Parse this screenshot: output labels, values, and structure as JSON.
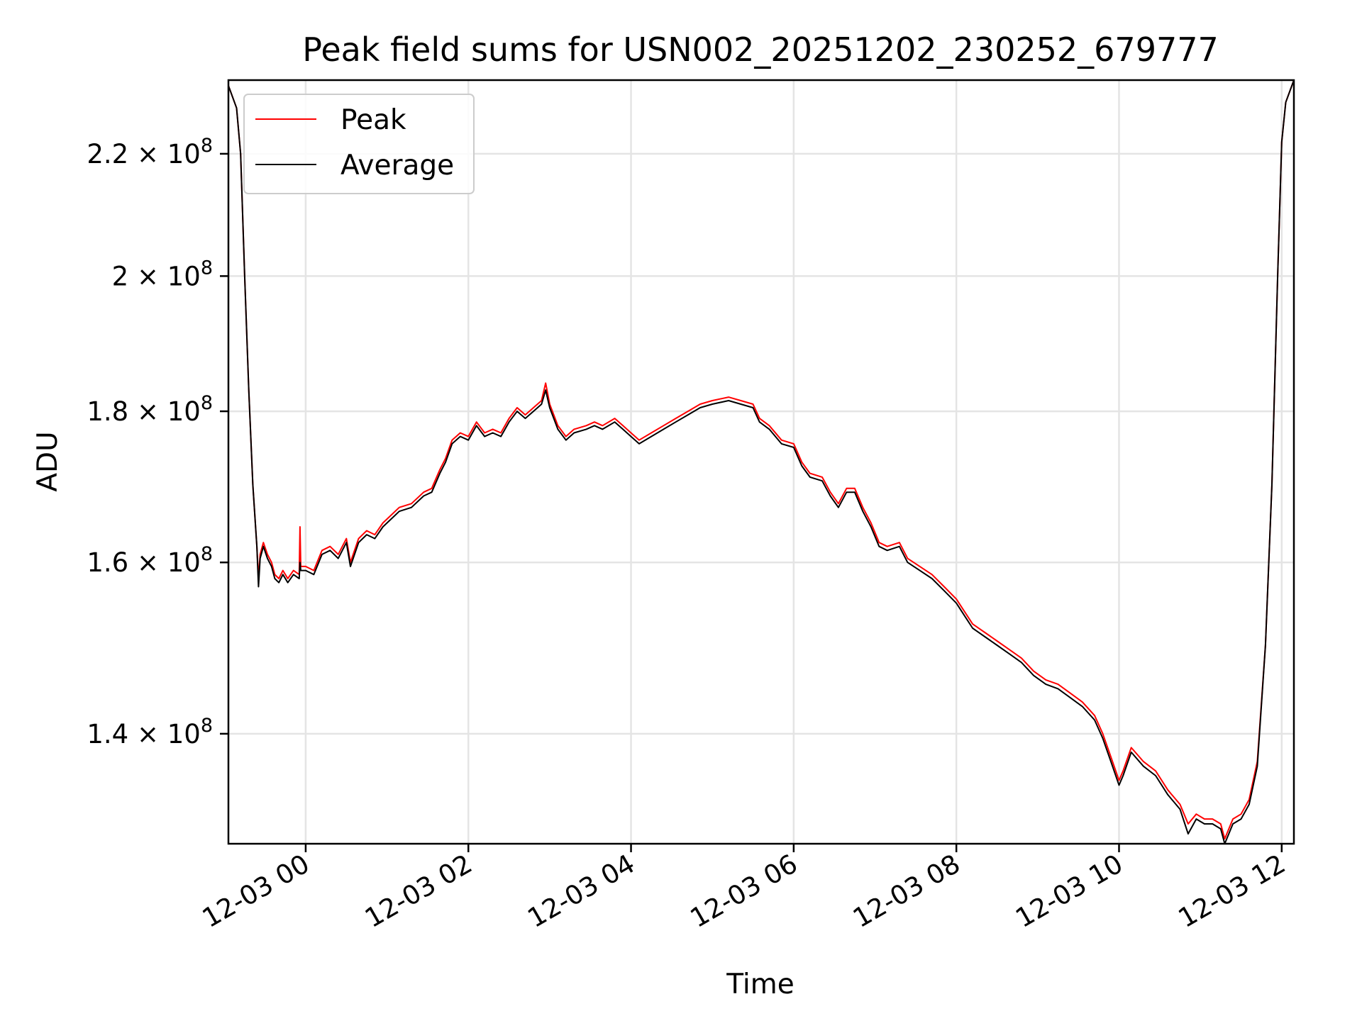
{
  "chart_data": {
    "type": "line",
    "title": "Peak field sums for USN002_20251202_230252_679777",
    "xlabel": "Time",
    "ylabel": "ADU",
    "yscale": "log",
    "ylim": [
      128500000,
      233000000
    ],
    "xlim_hours": [
      -0.95,
      12.15
    ],
    "grid": true,
    "legend": "upper-left",
    "x_ticks": [
      {
        "hour": 0,
        "label": "12-03 00"
      },
      {
        "hour": 2,
        "label": "12-03 02"
      },
      {
        "hour": 4,
        "label": "12-03 04"
      },
      {
        "hour": 6,
        "label": "12-03 06"
      },
      {
        "hour": 8,
        "label": "12-03 08"
      },
      {
        "hour": 10,
        "label": "12-03 10"
      },
      {
        "hour": 12,
        "label": "12-03 12"
      }
    ],
    "y_ticks": [
      {
        "value": 140000000,
        "mantissa": "1.4",
        "exp": "8"
      },
      {
        "value": 160000000,
        "mantissa": "1.6",
        "exp": "8"
      },
      {
        "value": 180000000,
        "mantissa": "1.8",
        "exp": "8"
      },
      {
        "value": 200000000,
        "mantissa": "2",
        "exp": "8"
      },
      {
        "value": 220000000,
        "mantissa": "2.2",
        "exp": "8"
      }
    ],
    "series": [
      {
        "name": "Peak",
        "color": "#ff0000",
        "points": [
          [
            -0.95,
            232000000
          ],
          [
            -0.85,
            228000000
          ],
          [
            -0.8,
            220000000
          ],
          [
            -0.75,
            200000000
          ],
          [
            -0.7,
            183000000
          ],
          [
            -0.65,
            170000000
          ],
          [
            -0.6,
            162000000
          ],
          [
            -0.58,
            158000000
          ],
          [
            -0.56,
            161000000
          ],
          [
            -0.52,
            162500000
          ],
          [
            -0.47,
            161000000
          ],
          [
            -0.42,
            160000000
          ],
          [
            -0.38,
            158500000
          ],
          [
            -0.33,
            158000000
          ],
          [
            -0.28,
            159000000
          ],
          [
            -0.22,
            158000000
          ],
          [
            -0.15,
            159000000
          ],
          [
            -0.08,
            158500000
          ],
          [
            -0.07,
            164500000
          ],
          [
            -0.06,
            159500000
          ],
          [
            0.0,
            159500000
          ],
          [
            0.1,
            159000000
          ],
          [
            0.2,
            161500000
          ],
          [
            0.3,
            162000000
          ],
          [
            0.4,
            161000000
          ],
          [
            0.5,
            163000000
          ],
          [
            0.55,
            160000000
          ],
          [
            0.65,
            163000000
          ],
          [
            0.75,
            164000000
          ],
          [
            0.85,
            163500000
          ],
          [
            0.95,
            165000000
          ],
          [
            1.05,
            166000000
          ],
          [
            1.15,
            167000000
          ],
          [
            1.3,
            167500000
          ],
          [
            1.45,
            169000000
          ],
          [
            1.55,
            169500000
          ],
          [
            1.65,
            172000000
          ],
          [
            1.72,
            173500000
          ],
          [
            1.8,
            176000000
          ],
          [
            1.9,
            177000000
          ],
          [
            2.0,
            176500000
          ],
          [
            2.1,
            178500000
          ],
          [
            2.2,
            177000000
          ],
          [
            2.3,
            177500000
          ],
          [
            2.4,
            177000000
          ],
          [
            2.5,
            179000000
          ],
          [
            2.6,
            180500000
          ],
          [
            2.7,
            179500000
          ],
          [
            2.8,
            180500000
          ],
          [
            2.9,
            181500000
          ],
          [
            2.95,
            184000000
          ],
          [
            3.0,
            181000000
          ],
          [
            3.1,
            178000000
          ],
          [
            3.2,
            176500000
          ],
          [
            3.3,
            177500000
          ],
          [
            3.45,
            178000000
          ],
          [
            3.55,
            178500000
          ],
          [
            3.65,
            178000000
          ],
          [
            3.8,
            179000000
          ],
          [
            3.9,
            178000000
          ],
          [
            4.0,
            177000000
          ],
          [
            4.1,
            176000000
          ],
          [
            4.25,
            177000000
          ],
          [
            4.4,
            178000000
          ],
          [
            4.55,
            179000000
          ],
          [
            4.7,
            180000000
          ],
          [
            4.85,
            181000000
          ],
          [
            5.0,
            181500000
          ],
          [
            5.2,
            182000000
          ],
          [
            5.35,
            181500000
          ],
          [
            5.5,
            181000000
          ],
          [
            5.58,
            179000000
          ],
          [
            5.7,
            178000000
          ],
          [
            5.85,
            176000000
          ],
          [
            6.0,
            175500000
          ],
          [
            6.1,
            173000000
          ],
          [
            6.2,
            171500000
          ],
          [
            6.35,
            171000000
          ],
          [
            6.45,
            169000000
          ],
          [
            6.55,
            167500000
          ],
          [
            6.65,
            169500000
          ],
          [
            6.75,
            169500000
          ],
          [
            6.85,
            167000000
          ],
          [
            6.95,
            165000000
          ],
          [
            7.05,
            162500000
          ],
          [
            7.15,
            162000000
          ],
          [
            7.3,
            162500000
          ],
          [
            7.4,
            160500000
          ],
          [
            7.55,
            159500000
          ],
          [
            7.7,
            158500000
          ],
          [
            7.85,
            157000000
          ],
          [
            8.0,
            155500000
          ],
          [
            8.1,
            154000000
          ],
          [
            8.2,
            152500000
          ],
          [
            8.35,
            151500000
          ],
          [
            8.5,
            150500000
          ],
          [
            8.65,
            149500000
          ],
          [
            8.8,
            148500000
          ],
          [
            8.95,
            147000000
          ],
          [
            9.1,
            146000000
          ],
          [
            9.25,
            145500000
          ],
          [
            9.4,
            144500000
          ],
          [
            9.55,
            143500000
          ],
          [
            9.7,
            142000000
          ],
          [
            9.8,
            140000000
          ],
          [
            9.9,
            137500000
          ],
          [
            10.0,
            135000000
          ],
          [
            10.05,
            136000000
          ],
          [
            10.15,
            138500000
          ],
          [
            10.3,
            137000000
          ],
          [
            10.45,
            136000000
          ],
          [
            10.6,
            134000000
          ],
          [
            10.75,
            132500000
          ],
          [
            10.85,
            130500000
          ],
          [
            10.95,
            131500000
          ],
          [
            11.05,
            131000000
          ],
          [
            11.15,
            131000000
          ],
          [
            11.25,
            130500000
          ],
          [
            11.3,
            129000000
          ],
          [
            11.4,
            131000000
          ],
          [
            11.5,
            131500000
          ],
          [
            11.6,
            133000000
          ],
          [
            11.7,
            137000000
          ],
          [
            11.8,
            150000000
          ],
          [
            11.88,
            170000000
          ],
          [
            11.95,
            200000000
          ],
          [
            12.0,
            222000000
          ],
          [
            12.05,
            229000000
          ],
          [
            12.15,
            233000000
          ]
        ]
      },
      {
        "name": "Average",
        "color": "#000000",
        "points": [
          [
            -0.95,
            232000000
          ],
          [
            -0.85,
            228000000
          ],
          [
            -0.8,
            220000000
          ],
          [
            -0.75,
            200000000
          ],
          [
            -0.7,
            183000000
          ],
          [
            -0.65,
            170000000
          ],
          [
            -0.6,
            162000000
          ],
          [
            -0.58,
            157000000
          ],
          [
            -0.56,
            160500000
          ],
          [
            -0.52,
            162000000
          ],
          [
            -0.47,
            160500000
          ],
          [
            -0.42,
            159500000
          ],
          [
            -0.38,
            158000000
          ],
          [
            -0.33,
            157500000
          ],
          [
            -0.28,
            158500000
          ],
          [
            -0.22,
            157500000
          ],
          [
            -0.15,
            158500000
          ],
          [
            -0.08,
            158000000
          ],
          [
            -0.07,
            160000000
          ],
          [
            -0.06,
            159000000
          ],
          [
            0.0,
            159000000
          ],
          [
            0.1,
            158500000
          ],
          [
            0.2,
            161000000
          ],
          [
            0.3,
            161500000
          ],
          [
            0.4,
            160500000
          ],
          [
            0.5,
            162500000
          ],
          [
            0.55,
            159500000
          ],
          [
            0.65,
            162500000
          ],
          [
            0.75,
            163500000
          ],
          [
            0.85,
            163000000
          ],
          [
            0.95,
            164500000
          ],
          [
            1.05,
            165500000
          ],
          [
            1.15,
            166500000
          ],
          [
            1.3,
            167000000
          ],
          [
            1.45,
            168500000
          ],
          [
            1.55,
            169000000
          ],
          [
            1.65,
            171500000
          ],
          [
            1.72,
            173000000
          ],
          [
            1.8,
            175500000
          ],
          [
            1.9,
            176500000
          ],
          [
            2.0,
            176000000
          ],
          [
            2.1,
            178000000
          ],
          [
            2.2,
            176500000
          ],
          [
            2.3,
            177000000
          ],
          [
            2.4,
            176500000
          ],
          [
            2.5,
            178500000
          ],
          [
            2.6,
            180000000
          ],
          [
            2.7,
            179000000
          ],
          [
            2.8,
            180000000
          ],
          [
            2.9,
            181000000
          ],
          [
            2.95,
            183000000
          ],
          [
            3.0,
            180500000
          ],
          [
            3.1,
            177500000
          ],
          [
            3.2,
            176000000
          ],
          [
            3.3,
            177000000
          ],
          [
            3.45,
            177500000
          ],
          [
            3.55,
            178000000
          ],
          [
            3.65,
            177500000
          ],
          [
            3.8,
            178500000
          ],
          [
            3.9,
            177500000
          ],
          [
            4.0,
            176500000
          ],
          [
            4.1,
            175500000
          ],
          [
            4.25,
            176500000
          ],
          [
            4.4,
            177500000
          ],
          [
            4.55,
            178500000
          ],
          [
            4.7,
            179500000
          ],
          [
            4.85,
            180500000
          ],
          [
            5.0,
            181000000
          ],
          [
            5.2,
            181500000
          ],
          [
            5.35,
            181000000
          ],
          [
            5.5,
            180500000
          ],
          [
            5.58,
            178500000
          ],
          [
            5.7,
            177500000
          ],
          [
            5.85,
            175500000
          ],
          [
            6.0,
            175000000
          ],
          [
            6.1,
            172500000
          ],
          [
            6.2,
            171000000
          ],
          [
            6.35,
            170500000
          ],
          [
            6.45,
            168500000
          ],
          [
            6.55,
            167000000
          ],
          [
            6.65,
            169000000
          ],
          [
            6.75,
            169000000
          ],
          [
            6.85,
            166500000
          ],
          [
            6.95,
            164500000
          ],
          [
            7.05,
            162000000
          ],
          [
            7.15,
            161500000
          ],
          [
            7.3,
            162000000
          ],
          [
            7.4,
            160000000
          ],
          [
            7.55,
            159000000
          ],
          [
            7.7,
            158000000
          ],
          [
            7.85,
            156500000
          ],
          [
            8.0,
            155000000
          ],
          [
            8.1,
            153500000
          ],
          [
            8.2,
            152000000
          ],
          [
            8.35,
            151000000
          ],
          [
            8.5,
            150000000
          ],
          [
            8.65,
            149000000
          ],
          [
            8.8,
            148000000
          ],
          [
            8.95,
            146500000
          ],
          [
            9.1,
            145500000
          ],
          [
            9.25,
            145000000
          ],
          [
            9.4,
            144000000
          ],
          [
            9.55,
            143000000
          ],
          [
            9.7,
            141500000
          ],
          [
            9.8,
            139500000
          ],
          [
            9.9,
            137000000
          ],
          [
            10.0,
            134500000
          ],
          [
            10.05,
            135500000
          ],
          [
            10.15,
            138000000
          ],
          [
            10.3,
            136500000
          ],
          [
            10.45,
            135500000
          ],
          [
            10.6,
            133500000
          ],
          [
            10.75,
            132000000
          ],
          [
            10.85,
            129500000
          ],
          [
            10.95,
            131000000
          ],
          [
            11.05,
            130500000
          ],
          [
            11.15,
            130500000
          ],
          [
            11.25,
            130000000
          ],
          [
            11.3,
            128500000
          ],
          [
            11.4,
            130500000
          ],
          [
            11.5,
            131000000
          ],
          [
            11.6,
            132500000
          ],
          [
            11.7,
            136500000
          ],
          [
            11.8,
            150000000
          ],
          [
            11.88,
            170000000
          ],
          [
            11.95,
            200000000
          ],
          [
            12.0,
            222000000
          ],
          [
            12.05,
            229000000
          ],
          [
            12.15,
            233000000
          ]
        ]
      }
    ]
  }
}
